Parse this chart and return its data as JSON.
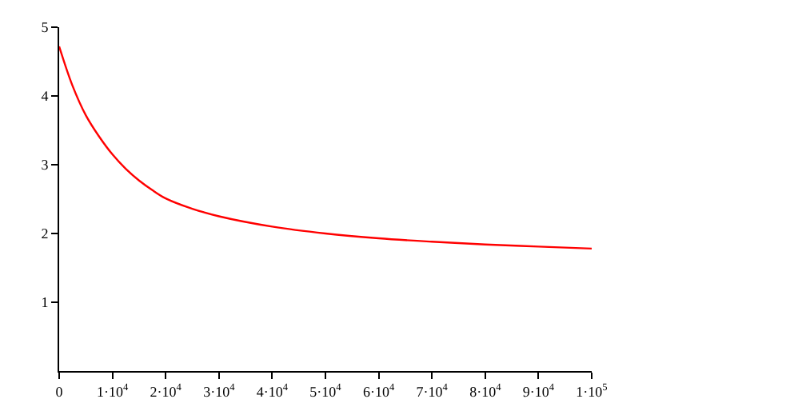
{
  "chart_data": {
    "type": "line",
    "x": [
      0,
      2500,
      5000,
      7500,
      10000,
      12500,
      15000,
      17500,
      20000,
      25000,
      30000,
      40000,
      50000,
      60000,
      70000,
      80000,
      90000,
      100000
    ],
    "series": [
      {
        "color": "#ff0000",
        "values": [
          4.72,
          4.15,
          3.72,
          3.41,
          3.15,
          2.94,
          2.77,
          2.63,
          2.51,
          2.36,
          2.25,
          2.1,
          2.0,
          1.93,
          1.88,
          1.84,
          1.81,
          1.78
        ]
      }
    ],
    "xlim": [
      0,
      100000
    ],
    "ylim": [
      0,
      5
    ],
    "xticks": [
      0,
      {
        "value": 10000,
        "label": "1·10$^{4}$"
      },
      {
        "value": 20000,
        "label": "2·10$^{4}$"
      },
      {
        "value": 30000,
        "label": "3·10$^{4}$"
      },
      {
        "value": 40000,
        "label": "4·10$^{4}$"
      },
      {
        "value": 50000,
        "label": "5·10$^{4}$"
      },
      {
        "value": 60000,
        "label": "6·10$^{4}$"
      },
      {
        "value": 70000,
        "label": "7·10$^{4}$"
      },
      {
        "value": 80000,
        "label": "8·10$^{4}$"
      },
      {
        "value": 90000,
        "label": "9·10$^{4}$"
      },
      {
        "value": 100000,
        "label": "1·10$^{5}$"
      }
    ],
    "yticks": [
      1,
      2,
      3,
      4,
      5
    ],
    "legend": false,
    "marker": "none",
    "line_style": "solid"
  }
}
